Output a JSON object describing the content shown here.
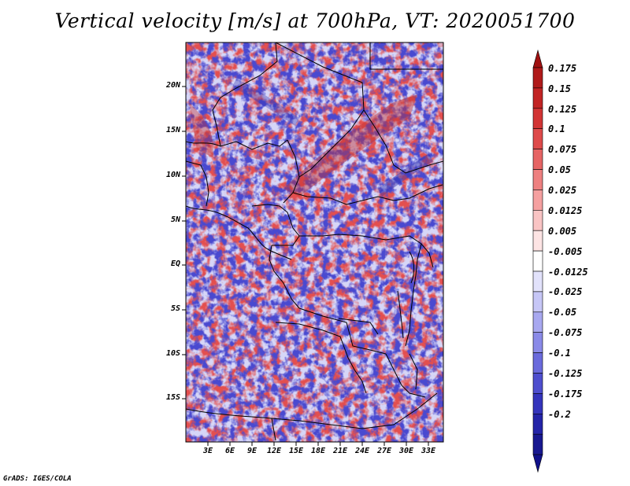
{
  "title": "Vertical velocity [m/s] at 700hPa, VT: 2020051700",
  "footer": "GrADS: IGES/COLA",
  "map": {
    "lat_ticks": [
      "20N",
      "15N",
      "10N",
      "5N",
      "EQ",
      "5S",
      "10S",
      "15S"
    ],
    "lon_ticks": [
      "3E",
      "6E",
      "9E",
      "12E",
      "15E",
      "18E",
      "21E",
      "24E",
      "27E",
      "30E",
      "33E"
    ]
  },
  "colorbar": {
    "labels": [
      "0.175",
      "0.15",
      "0.125",
      "0.1",
      "0.075",
      "0.05",
      "0.025",
      "0.0125",
      "0.005",
      "-0.005",
      "-0.0125",
      "-0.025",
      "-0.05",
      "-0.075",
      "-0.1",
      "-0.125",
      "-0.175",
      "-0.2"
    ],
    "colors": [
      "#b01a1a",
      "#c22424",
      "#d23434",
      "#de4a4a",
      "#e66464",
      "#ee8080",
      "#f5a0a0",
      "#f9c4c4",
      "#fde4e4",
      "#ffffff",
      "#e2e2fb",
      "#c6c6f6",
      "#a8a8f0",
      "#8a8ae8",
      "#6a6adc",
      "#4e4ece",
      "#3434bc",
      "#2424a8",
      "#181890"
    ],
    "cap_top_color": "#a01010",
    "cap_bottom_color": "#10108a"
  }
}
